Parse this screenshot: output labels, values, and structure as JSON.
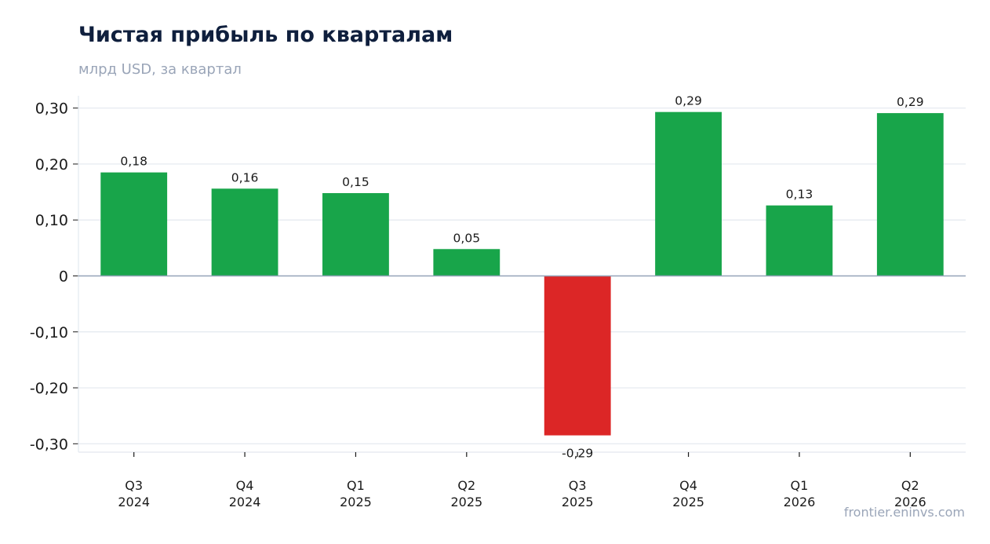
{
  "chart_data": {
    "type": "bar",
    "title": "Чистая прибыль по кварталам",
    "subtitle": "млрд USD, за квартал",
    "categories": [
      [
        "Q3",
        "2024"
      ],
      [
        "Q4",
        "2024"
      ],
      [
        "Q1",
        "2025"
      ],
      [
        "Q2",
        "2025"
      ],
      [
        "Q3",
        "2025"
      ],
      [
        "Q4",
        "2025"
      ],
      [
        "Q1",
        "2026"
      ],
      [
        "Q2",
        "2026"
      ]
    ],
    "values": [
      0.185,
      0.156,
      0.148,
      0.048,
      -0.285,
      0.293,
      0.126,
      0.291
    ],
    "data_labels": [
      "0,18",
      "0,16",
      "0,15",
      "0,05",
      "-0,29",
      "0,29",
      "0,13",
      "0,29"
    ],
    "yticks": [
      {
        "value": 0.3,
        "label": "0,30"
      },
      {
        "value": 0.2,
        "label": "0,20"
      },
      {
        "value": 0.1,
        "label": "0,10"
      },
      {
        "value": 0,
        "label": "0"
      },
      {
        "value": -0.1,
        "label": "-0,10"
      },
      {
        "value": -0.2,
        "label": "-0,20"
      },
      {
        "value": -0.3,
        "label": "-0,30"
      }
    ],
    "ylim": [
      -0.315,
      0.322
    ],
    "grid": true,
    "positive_color": "#18a54a",
    "negative_color": "#dc2626",
    "source": "frontier.eninvs.com"
  }
}
